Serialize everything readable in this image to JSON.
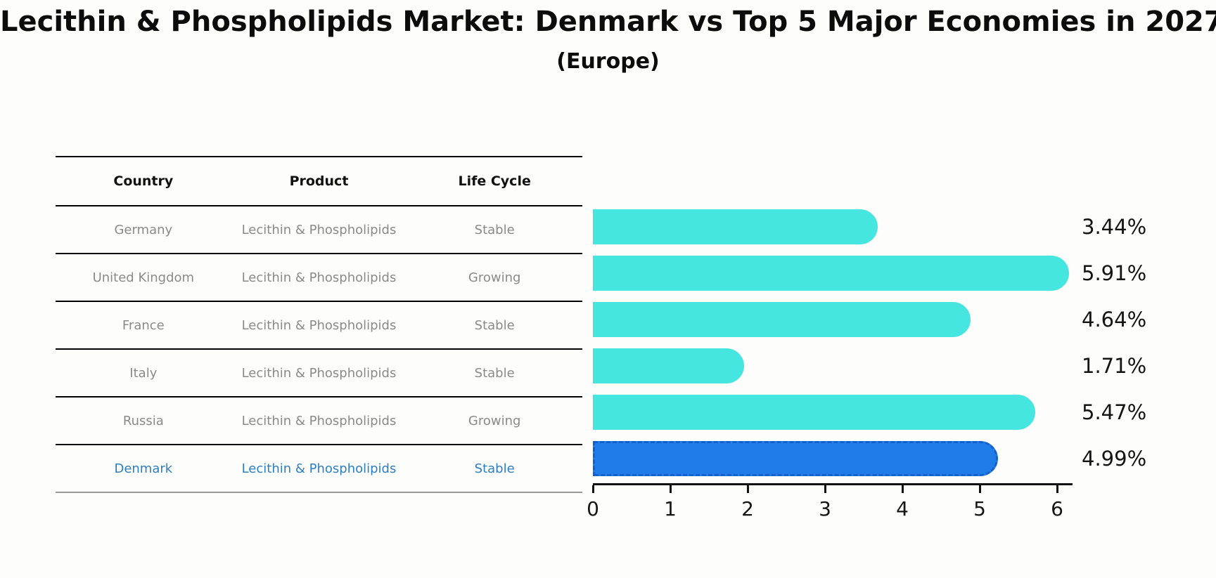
{
  "title": "Lecithin & Phospholipids Market: Denmark vs Top 5 Major Economies in 2027",
  "subtitle": "(Europe)",
  "table": {
    "headers": [
      "Country",
      "Product",
      "Life Cycle"
    ],
    "rows": [
      {
        "country": "Germany",
        "product": "Lecithin & Phospholipids",
        "life_cycle": "Stable",
        "highlighted": false
      },
      {
        "country": "United Kingdom",
        "product": "Lecithin & Phospholipids",
        "life_cycle": "Growing",
        "highlighted": false
      },
      {
        "country": "France",
        "product": "Lecithin & Phospholipids",
        "life_cycle": "Stable",
        "highlighted": false
      },
      {
        "country": "Italy",
        "product": "Lecithin & Phospholipids",
        "life_cycle": "Stable",
        "highlighted": false
      },
      {
        "country": "Russia",
        "product": "Lecithin & Phospholipids",
        "life_cycle": "Growing",
        "highlighted": false
      },
      {
        "country": "Denmark",
        "product": "Lecithin & Phospholipids",
        "life_cycle": "Stable",
        "highlighted": true
      }
    ]
  },
  "chart_data": {
    "type": "bar",
    "orientation": "horizontal",
    "title": "Lecithin & Phospholipids Market: Denmark vs Top 5 Major Economies in 2027 (Europe)",
    "categories": [
      "Germany",
      "United Kingdom",
      "France",
      "Italy",
      "Russia",
      "Denmark"
    ],
    "values": [
      3.44,
      5.91,
      4.64,
      1.71,
      5.47,
      4.99
    ],
    "value_labels": [
      "3.44%",
      "5.91%",
      "4.64%",
      "1.71%",
      "5.47%",
      "4.99%"
    ],
    "xticks": [
      "0",
      "1",
      "2",
      "3",
      "4",
      "5",
      "6"
    ],
    "xlim": [
      0,
      6.2
    ],
    "grid": false,
    "legend": null,
    "highlight_index": 5,
    "bar_color": "#45E5E0",
    "highlight_color": "#1F7CE8",
    "highlight_border_color": "#1560CC",
    "highlight_text_color": "#2e7ebf"
  }
}
